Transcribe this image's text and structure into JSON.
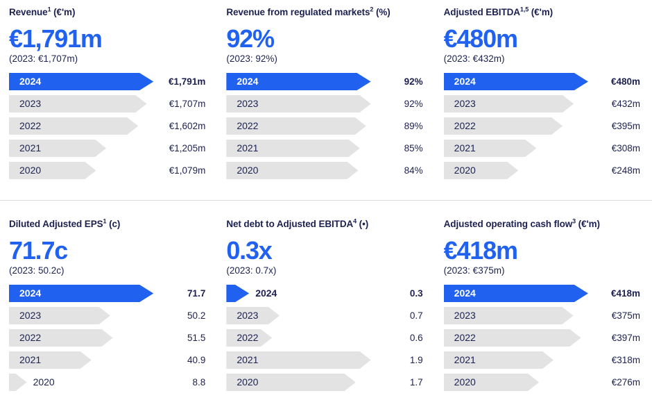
{
  "colors": {
    "accent_blue": "#2161F0",
    "bar_gray": "#E3E3E3",
    "text_navy": "#1C2150",
    "divider": "#DCDCDC",
    "background": "#FFFFFF",
    "year_on_accent": "#FFFFFF"
  },
  "panels": [
    {
      "title": "Revenue",
      "title_sup": "1",
      "title_unit": " (€'m)",
      "headline": "€1,791m",
      "prior": "(2023: €1,707m)"
    },
    {
      "title": "Revenue from regulated markets",
      "title_sup": "2",
      "title_unit": " (%)",
      "headline": "92%",
      "prior": "(2023: 92%)"
    },
    {
      "title": "Adjusted EBITDA",
      "title_sup": "1,5",
      "title_unit": " (€'m)",
      "headline": "€480m",
      "prior": "(2023: €432m)"
    },
    {
      "title": "Diluted Adjusted EPS",
      "title_sup": "1",
      "title_unit": " (c)",
      "headline": "71.7c",
      "prior": "(2023: 50.2c)"
    },
    {
      "title": "Net debt to Adjusted EBITDA",
      "title_sup": "4",
      "title_unit": " (•)",
      "headline": "0.3x",
      "prior": "(2023: 0.7x)"
    },
    {
      "title": "Adjusted operating cash flow",
      "title_sup": "3",
      "title_unit": " (€'m)",
      "headline": "€418m",
      "prior": "(2023: €375m)"
    }
  ],
  "chart_data": [
    {
      "type": "bar",
      "orientation": "horizontal",
      "title": "Revenue¹ (€'m)",
      "categories": [
        "2024",
        "2023",
        "2022",
        "2021",
        "2020"
      ],
      "values": [
        1791,
        1707,
        1602,
        1205,
        1079
      ],
      "value_labels": [
        "€1,791m",
        "€1,707m",
        "€1,602m",
        "€1,205m",
        "€1,079m"
      ],
      "highlight_category": "2024",
      "xlim": [
        0,
        1791
      ],
      "grid": false,
      "legend": false
    },
    {
      "type": "bar",
      "orientation": "horizontal",
      "title": "Revenue from regulated markets² (%)",
      "categories": [
        "2024",
        "2023",
        "2022",
        "2021",
        "2020"
      ],
      "values": [
        92,
        92,
        89,
        85,
        84
      ],
      "value_labels": [
        "92%",
        "92%",
        "89%",
        "85%",
        "84%"
      ],
      "highlight_category": "2024",
      "xlim": [
        0,
        92
      ],
      "grid": false,
      "legend": false
    },
    {
      "type": "bar",
      "orientation": "horizontal",
      "title": "Adjusted EBITDA¹,⁵ (€'m)",
      "categories": [
        "2024",
        "2023",
        "2022",
        "2021",
        "2020"
      ],
      "values": [
        480,
        432,
        395,
        308,
        248
      ],
      "value_labels": [
        "€480m",
        "€432m",
        "€395m",
        "€308m",
        "€248m"
      ],
      "highlight_category": "2024",
      "xlim": [
        0,
        480
      ],
      "grid": false,
      "legend": false
    },
    {
      "type": "bar",
      "orientation": "horizontal",
      "title": "Diluted Adjusted EPS¹ (c)",
      "categories": [
        "2024",
        "2023",
        "2022",
        "2021",
        "2020"
      ],
      "values": [
        71.7,
        50.2,
        51.5,
        40.9,
        8.8
      ],
      "value_labels": [
        "71.7",
        "50.2",
        "51.5",
        "40.9",
        "8.8"
      ],
      "highlight_category": "2024",
      "xlim": [
        0,
        71.7
      ],
      "grid": false,
      "legend": false
    },
    {
      "type": "bar",
      "orientation": "horizontal",
      "title": "Net debt to Adjusted EBITDA⁴ (•)",
      "categories": [
        "2024",
        "2023",
        "2022",
        "2021",
        "2020"
      ],
      "values": [
        0.3,
        0.7,
        0.6,
        1.9,
        1.7
      ],
      "value_labels": [
        "0.3",
        "0.7",
        "0.6",
        "1.9",
        "1.7"
      ],
      "highlight_category": "2024",
      "xlim": [
        0,
        1.9
      ],
      "grid": false,
      "legend": false
    },
    {
      "type": "bar",
      "orientation": "horizontal",
      "title": "Adjusted operating cash flow³ (€'m)",
      "categories": [
        "2024",
        "2023",
        "2022",
        "2021",
        "2020"
      ],
      "values": [
        418,
        375,
        397,
        318,
        276
      ],
      "value_labels": [
        "€418m",
        "€375m",
        "€397m",
        "€318m",
        "€276m"
      ],
      "highlight_category": "2024",
      "xlim": [
        0,
        418
      ],
      "grid": false,
      "legend": false
    }
  ]
}
